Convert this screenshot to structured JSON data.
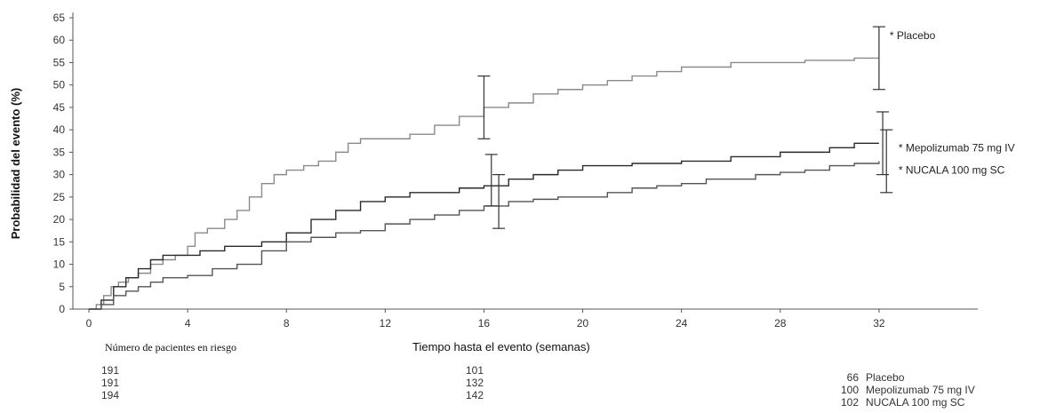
{
  "chart_data": {
    "type": "line",
    "xlabel": "Tiempo hasta el evento (semanas)",
    "ylabel": "Probabilidad del evento (%)",
    "xlim": [
      0,
      36
    ],
    "ylim": [
      0,
      65
    ],
    "x_ticks": [
      "0",
      "4",
      "8",
      "12",
      "16",
      "20",
      "24",
      "28",
      "32"
    ],
    "y_ticks": [
      "0",
      "5",
      "10",
      "15",
      "20",
      "25",
      "30",
      "35",
      "40",
      "45",
      "50",
      "55",
      "60",
      "65"
    ],
    "series": [
      {
        "name": "* Placebo",
        "color": "#8a8a8a",
        "points": [
          [
            0,
            0
          ],
          [
            0.3,
            1
          ],
          [
            0.6,
            3
          ],
          [
            0.9,
            5
          ],
          [
            1.2,
            6
          ],
          [
            1.6,
            7
          ],
          [
            2,
            8
          ],
          [
            2.5,
            10
          ],
          [
            3,
            11
          ],
          [
            3.5,
            12
          ],
          [
            4,
            14
          ],
          [
            4.3,
            17
          ],
          [
            4.8,
            18
          ],
          [
            5.5,
            20
          ],
          [
            6,
            22
          ],
          [
            6.5,
            25
          ],
          [
            7,
            28
          ],
          [
            7.5,
            30
          ],
          [
            8,
            31
          ],
          [
            8.7,
            32
          ],
          [
            9.3,
            33
          ],
          [
            10,
            35
          ],
          [
            10.5,
            37
          ],
          [
            11,
            38
          ],
          [
            12,
            38
          ],
          [
            13,
            39
          ],
          [
            14,
            41
          ],
          [
            15,
            43
          ],
          [
            16,
            45
          ],
          [
            17,
            46
          ],
          [
            18,
            48
          ],
          [
            19,
            49
          ],
          [
            20,
            50
          ],
          [
            21,
            51
          ],
          [
            22,
            52
          ],
          [
            23,
            53
          ],
          [
            24,
            54
          ],
          [
            26,
            55
          ],
          [
            29,
            55.5
          ],
          [
            31,
            56
          ],
          [
            32,
            56
          ]
        ],
        "error_bar": {
          "x": 32,
          "low": 49,
          "high": 63
        }
      },
      {
        "name": "* Mepolizumab 75 mg IV",
        "color": "#2a2a2a",
        "points": [
          [
            0,
            0
          ],
          [
            0.5,
            2
          ],
          [
            1,
            5
          ],
          [
            1.5,
            7
          ],
          [
            2,
            9
          ],
          [
            2.5,
            11
          ],
          [
            3,
            12
          ],
          [
            4,
            12
          ],
          [
            4.5,
            13
          ],
          [
            5.5,
            14
          ],
          [
            6,
            14
          ],
          [
            7,
            15
          ],
          [
            8,
            17
          ],
          [
            9,
            20
          ],
          [
            10,
            22
          ],
          [
            11,
            24
          ],
          [
            12,
            25
          ],
          [
            13,
            26
          ],
          [
            14,
            26
          ],
          [
            15,
            27
          ],
          [
            16,
            27.5
          ],
          [
            17,
            29
          ],
          [
            18,
            30
          ],
          [
            19,
            31
          ],
          [
            20,
            32
          ],
          [
            22,
            32.5
          ],
          [
            24,
            33
          ],
          [
            26,
            34
          ],
          [
            28,
            35
          ],
          [
            30,
            36
          ],
          [
            31,
            37
          ],
          [
            32,
            37
          ]
        ],
        "error_bar": {
          "x": 32,
          "low": 30,
          "high": 44
        }
      },
      {
        "name": "* NUCALA 100 mg SC",
        "color": "#555555",
        "points": [
          [
            0,
            0
          ],
          [
            0.5,
            1
          ],
          [
            1,
            3
          ],
          [
            1.5,
            4
          ],
          [
            2,
            5
          ],
          [
            2.5,
            6
          ],
          [
            3,
            7
          ],
          [
            4,
            7.5
          ],
          [
            5,
            9
          ],
          [
            6,
            10
          ],
          [
            7,
            13
          ],
          [
            8,
            15
          ],
          [
            9,
            16
          ],
          [
            10,
            17
          ],
          [
            11,
            17.5
          ],
          [
            12,
            19
          ],
          [
            13,
            20
          ],
          [
            14,
            21
          ],
          [
            15,
            22
          ],
          [
            16,
            23
          ],
          [
            17,
            24
          ],
          [
            18,
            24.5
          ],
          [
            19,
            25
          ],
          [
            20,
            25
          ],
          [
            21,
            26
          ],
          [
            22,
            27
          ],
          [
            23,
            27.5
          ],
          [
            24,
            28
          ],
          [
            25,
            29
          ],
          [
            26,
            29
          ],
          [
            27,
            30
          ],
          [
            28,
            30.5
          ],
          [
            29,
            31
          ],
          [
            30,
            32
          ],
          [
            31,
            32.5
          ],
          [
            32,
            33
          ]
        ],
        "error_bar": {
          "x": 32,
          "low": 26,
          "high": 40
        }
      }
    ],
    "error_bars_16": [
      {
        "x": 16,
        "low": 38,
        "high": 52
      },
      {
        "x": 16.3,
        "low": 23,
        "high": 34.5
      },
      {
        "x": 16.6,
        "low": 18,
        "high": 30
      }
    ]
  },
  "risk_table": {
    "title": "Número de pacientes en riesgo",
    "week0": [
      "191",
      "191",
      "194"
    ],
    "week16": [
      "101",
      "132",
      "142"
    ],
    "week32": [
      {
        "n": "66",
        "label": "Placebo"
      },
      {
        "n": "100",
        "label": "Mepolizumab 75 mg IV"
      },
      {
        "n": "102",
        "label": "NUCALA 100 mg SC"
      }
    ]
  }
}
